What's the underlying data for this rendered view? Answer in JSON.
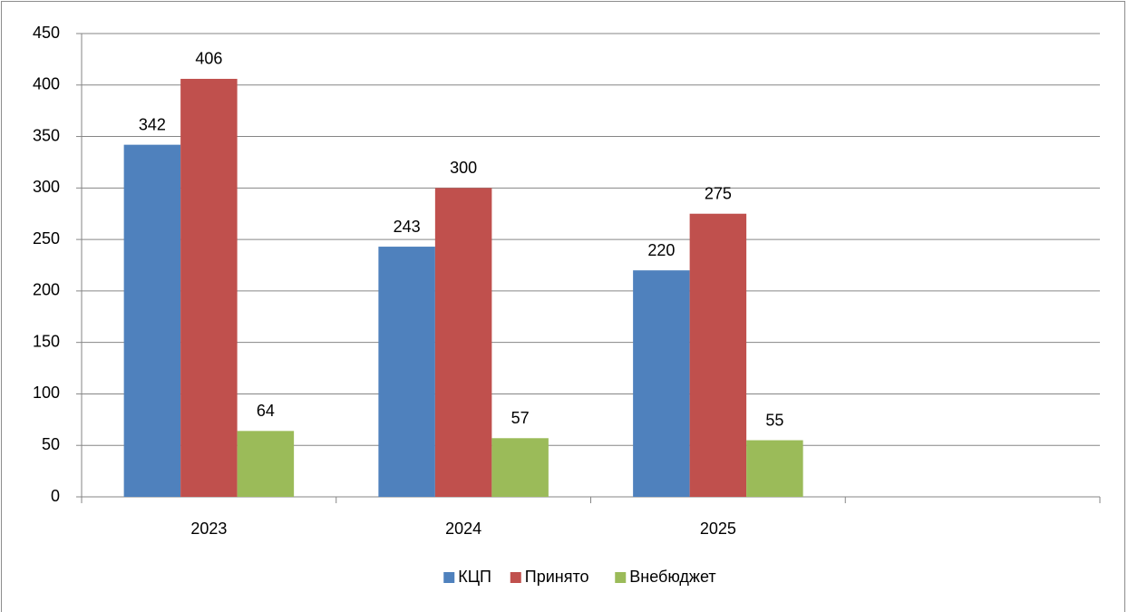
{
  "chart_data": {
    "type": "bar",
    "categories": [
      "2023",
      "2024",
      "2025",
      null
    ],
    "series": [
      {
        "name": "КЦП",
        "color": "#4f81bd",
        "values": [
          342,
          243,
          220,
          null
        ]
      },
      {
        "name": "Принято",
        "color": "#c0504d",
        "values": [
          406,
          300,
          275,
          null
        ]
      },
      {
        "name": "Внебюджет",
        "color": "#9bbb59",
        "values": [
          64,
          57,
          55,
          null
        ]
      }
    ],
    "ylim": [
      0,
      450
    ],
    "yticks": [
      0,
      50,
      100,
      150,
      200,
      250,
      300,
      350,
      400,
      450
    ],
    "grid": true,
    "legend": "bottom"
  }
}
